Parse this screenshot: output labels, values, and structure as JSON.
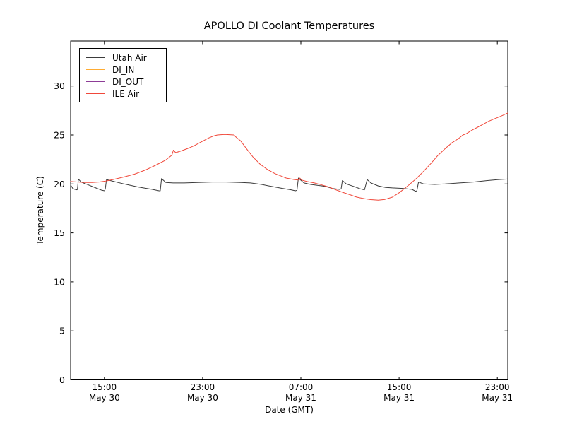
{
  "chart_data": {
    "type": "line",
    "title": "APOLLO DI Coolant Temperatures",
    "xlabel": "Date (GMT)",
    "ylabel": "Temperature (C)",
    "grid": false,
    "legend_position": "upper left",
    "x_unit": "hours since May 30 00:00 GMT",
    "xlim": [
      12.25,
      47.85
    ],
    "ylim": [
      0,
      34.6
    ],
    "y_ticks": [
      0,
      5,
      10,
      15,
      20,
      25,
      30
    ],
    "x_ticks": [
      {
        "value": 15,
        "label": [
          "15:00",
          "May 30"
        ]
      },
      {
        "value": 23,
        "label": [
          "23:00",
          "May 30"
        ]
      },
      {
        "value": 31,
        "label": [
          "07:00",
          "May 31"
        ]
      },
      {
        "value": 39,
        "label": [
          "15:00",
          "May 31"
        ]
      },
      {
        "value": 47,
        "label": [
          "23:00",
          "May 31"
        ]
      }
    ],
    "series": [
      {
        "name": "Utah Air",
        "color": "#3b3b3b",
        "points": [
          [
            12.25,
            19.9
          ],
          [
            12.42,
            19.55
          ],
          [
            12.6,
            19.45
          ],
          [
            12.76,
            19.4
          ],
          [
            12.8,
            19.45
          ],
          [
            12.88,
            20.5
          ],
          [
            13.1,
            20.2
          ],
          [
            13.7,
            19.9
          ],
          [
            14.3,
            19.6
          ],
          [
            14.8,
            19.35
          ],
          [
            15.02,
            19.3
          ],
          [
            15.08,
            19.55
          ],
          [
            15.17,
            20.45
          ],
          [
            15.7,
            20.28
          ],
          [
            16.6,
            20.0
          ],
          [
            17.7,
            19.7
          ],
          [
            18.9,
            19.45
          ],
          [
            19.45,
            19.3
          ],
          [
            19.55,
            19.3
          ],
          [
            19.65,
            20.55
          ],
          [
            20.0,
            20.15
          ],
          [
            20.6,
            20.1
          ],
          [
            21.5,
            20.1
          ],
          [
            22.6,
            20.15
          ],
          [
            23.8,
            20.2
          ],
          [
            24.9,
            20.2
          ],
          [
            26.1,
            20.15
          ],
          [
            26.9,
            20.1
          ],
          [
            27.8,
            19.95
          ],
          [
            28.6,
            19.75
          ],
          [
            29.5,
            19.55
          ],
          [
            30.2,
            19.4
          ],
          [
            30.55,
            19.3
          ],
          [
            30.68,
            19.35
          ],
          [
            30.8,
            20.6
          ],
          [
            31.25,
            20.1
          ],
          [
            31.8,
            19.95
          ],
          [
            32.4,
            19.85
          ],
          [
            33.0,
            19.75
          ],
          [
            33.55,
            19.55
          ],
          [
            34.15,
            19.45
          ],
          [
            34.28,
            19.5
          ],
          [
            34.38,
            20.35
          ],
          [
            34.7,
            20.0
          ],
          [
            35.3,
            19.75
          ],
          [
            35.85,
            19.5
          ],
          [
            36.18,
            19.4
          ],
          [
            36.4,
            20.45
          ],
          [
            36.7,
            20.1
          ],
          [
            37.3,
            19.8
          ],
          [
            37.9,
            19.65
          ],
          [
            38.45,
            19.6
          ],
          [
            39.3,
            19.55
          ],
          [
            40.05,
            19.45
          ],
          [
            40.35,
            19.25
          ],
          [
            40.45,
            19.3
          ],
          [
            40.58,
            20.2
          ],
          [
            41.0,
            20.0
          ],
          [
            41.9,
            19.95
          ],
          [
            42.75,
            20.0
          ],
          [
            43.9,
            20.1
          ],
          [
            45.05,
            20.2
          ],
          [
            46.2,
            20.35
          ],
          [
            47.1,
            20.45
          ],
          [
            47.85,
            20.5
          ]
        ]
      },
      {
        "name": "DI_IN",
        "color": "#ffac33",
        "points": []
      },
      {
        "name": "DI_OUT",
        "color": "#8d3d97",
        "points": []
      },
      {
        "name": "ILE Air",
        "color": "#f0483a",
        "points": [
          [
            12.25,
            20.25
          ],
          [
            12.85,
            20.2
          ],
          [
            13.4,
            20.15
          ],
          [
            14.0,
            20.15
          ],
          [
            14.55,
            20.2
          ],
          [
            15.1,
            20.3
          ],
          [
            15.7,
            20.45
          ],
          [
            16.55,
            20.7
          ],
          [
            17.45,
            21.0
          ],
          [
            18.3,
            21.4
          ],
          [
            19.15,
            21.9
          ],
          [
            20.0,
            22.45
          ],
          [
            20.5,
            22.95
          ],
          [
            20.62,
            23.45
          ],
          [
            20.8,
            23.2
          ],
          [
            21.2,
            23.35
          ],
          [
            21.75,
            23.6
          ],
          [
            22.3,
            23.9
          ],
          [
            22.9,
            24.3
          ],
          [
            23.5,
            24.7
          ],
          [
            23.9,
            24.9
          ],
          [
            24.2,
            25.0
          ],
          [
            24.8,
            25.05
          ],
          [
            25.55,
            25.0
          ],
          [
            25.75,
            24.75
          ],
          [
            26.1,
            24.4
          ],
          [
            26.6,
            23.55
          ],
          [
            27.1,
            22.75
          ],
          [
            27.7,
            22.0
          ],
          [
            28.3,
            21.45
          ],
          [
            28.9,
            21.05
          ],
          [
            29.4,
            20.8
          ],
          [
            29.8,
            20.6
          ],
          [
            30.45,
            20.45
          ],
          [
            30.8,
            20.4
          ],
          [
            30.92,
            20.6
          ],
          [
            31.05,
            20.4
          ],
          [
            31.5,
            20.25
          ],
          [
            32.1,
            20.1
          ],
          [
            32.7,
            19.9
          ],
          [
            33.25,
            19.7
          ],
          [
            33.85,
            19.4
          ],
          [
            34.4,
            19.15
          ],
          [
            35.0,
            18.9
          ],
          [
            35.55,
            18.65
          ],
          [
            36.15,
            18.5
          ],
          [
            36.7,
            18.4
          ],
          [
            37.3,
            18.35
          ],
          [
            37.85,
            18.42
          ],
          [
            38.45,
            18.65
          ],
          [
            39.0,
            19.1
          ],
          [
            39.45,
            19.55
          ],
          [
            39.85,
            19.95
          ],
          [
            40.45,
            20.6
          ],
          [
            41.0,
            21.3
          ],
          [
            41.6,
            22.1
          ],
          [
            42.15,
            22.9
          ],
          [
            42.75,
            23.6
          ],
          [
            43.3,
            24.2
          ],
          [
            43.8,
            24.6
          ],
          [
            44.2,
            25.0
          ],
          [
            44.45,
            25.12
          ],
          [
            44.95,
            25.5
          ],
          [
            45.4,
            25.8
          ],
          [
            45.85,
            26.1
          ],
          [
            46.3,
            26.4
          ],
          [
            46.75,
            26.65
          ],
          [
            47.25,
            26.9
          ],
          [
            47.6,
            27.1
          ],
          [
            47.85,
            27.25
          ]
        ]
      }
    ]
  }
}
